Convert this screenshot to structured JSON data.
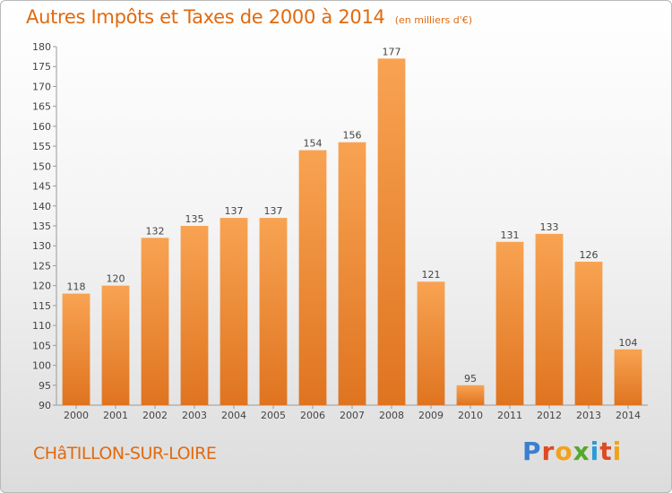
{
  "header": {
    "title": "Autres Impôts et Taxes de 2000 à 2014",
    "unit_note": "(en milliers d'€)"
  },
  "footer": {
    "commune": "CHâTILLON-SUR-LOIRE",
    "brand_letters": [
      "P",
      "r",
      "o",
      "x",
      "i",
      "t",
      "i"
    ]
  },
  "colors": {
    "accent": "#e06a10",
    "bar_light": "#f8a352",
    "bar_dark": "#df7420",
    "axis": "#999999",
    "brand": [
      "#3a7fd0",
      "#e04a22",
      "#f2a21a",
      "#55a82e",
      "#2d9ad8",
      "#e04a22",
      "#f2a21a"
    ]
  },
  "chart_data": {
    "type": "bar",
    "title": "Autres Impôts et Taxes de 2000 à 2014",
    "subtitle": "(en milliers d'€)",
    "categories": [
      "2000",
      "2001",
      "2002",
      "2003",
      "2004",
      "2005",
      "2006",
      "2007",
      "2008",
      "2009",
      "2010",
      "2011",
      "2012",
      "2013",
      "2014"
    ],
    "values": [
      118,
      120,
      132,
      135,
      137,
      137,
      154,
      156,
      177,
      121,
      95,
      131,
      133,
      126,
      104
    ],
    "ylim": [
      90,
      180
    ],
    "yticks": [
      90,
      95,
      100,
      105,
      110,
      115,
      120,
      125,
      130,
      135,
      140,
      145,
      150,
      155,
      160,
      165,
      170,
      175,
      180
    ],
    "grid": false,
    "legend": "none",
    "data_labels": true
  }
}
